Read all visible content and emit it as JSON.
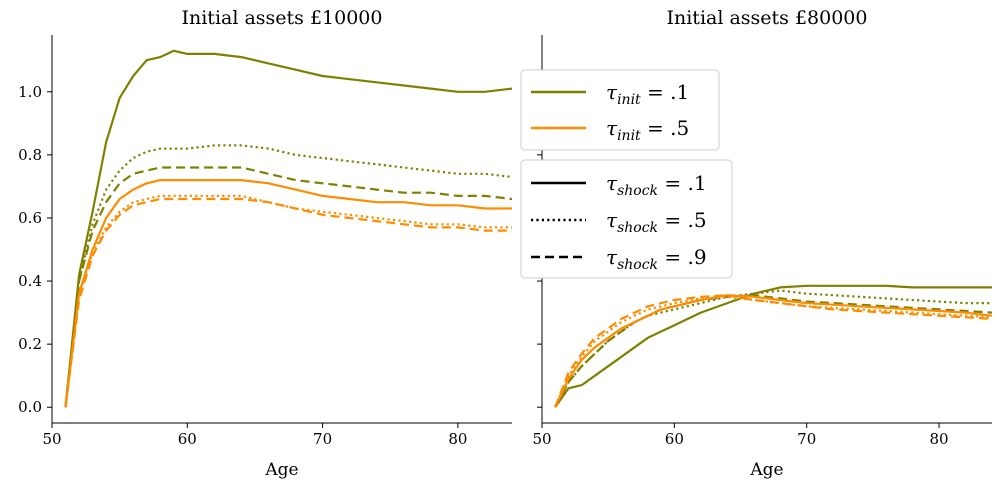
{
  "colors": {
    "olive": "#808000",
    "orange": "#ff8c00"
  },
  "legend_init": [
    {
      "label": "τinit = .1",
      "color_key": "olive"
    },
    {
      "label": "τinit = .5",
      "color_key": "orange"
    }
  ],
  "legend_shock": [
    {
      "label": "τshock = .1",
      "style": "solid"
    },
    {
      "label": "τshock = .5",
      "style": "dotted"
    },
    {
      "label": "τshock = .9",
      "style": "dashed"
    }
  ],
  "chart_data": [
    {
      "type": "line",
      "title": "Initial assets £10000",
      "xlabel": "Age",
      "ylabel": "",
      "xlim": [
        50,
        84
      ],
      "ylim": [
        -0.05,
        1.18
      ],
      "xticks": [
        50,
        60,
        70,
        80
      ],
      "yticks": [
        0.0,
        0.2,
        0.4,
        0.6,
        0.8,
        1.0
      ],
      "ytick_labels": [
        "0.0",
        "0.2",
        "0.4",
        "0.6",
        "0.8",
        "1.0"
      ],
      "x": [
        51,
        52,
        53,
        54,
        55,
        56,
        57,
        58,
        59,
        60,
        62,
        64,
        66,
        68,
        70,
        72,
        74,
        76,
        78,
        80,
        82,
        84
      ],
      "series": [
        {
          "color_key": "olive",
          "dash": "solid",
          "values": [
            0.0,
            0.42,
            0.62,
            0.84,
            0.98,
            1.05,
            1.1,
            1.11,
            1.13,
            1.12,
            1.12,
            1.11,
            1.09,
            1.07,
            1.05,
            1.04,
            1.03,
            1.02,
            1.01,
            1.0,
            1.0,
            1.01
          ]
        },
        {
          "color_key": "olive",
          "dash": "dotted",
          "values": [
            0.0,
            0.4,
            0.58,
            0.69,
            0.75,
            0.79,
            0.81,
            0.82,
            0.82,
            0.82,
            0.83,
            0.83,
            0.82,
            0.8,
            0.79,
            0.78,
            0.77,
            0.76,
            0.75,
            0.74,
            0.74,
            0.73
          ]
        },
        {
          "color_key": "olive",
          "dash": "dashed",
          "values": [
            0.0,
            0.4,
            0.56,
            0.65,
            0.71,
            0.74,
            0.75,
            0.76,
            0.76,
            0.76,
            0.76,
            0.76,
            0.74,
            0.72,
            0.71,
            0.7,
            0.69,
            0.68,
            0.68,
            0.67,
            0.67,
            0.66
          ]
        },
        {
          "color_key": "orange",
          "dash": "solid",
          "values": [
            0.0,
            0.36,
            0.5,
            0.6,
            0.66,
            0.69,
            0.71,
            0.72,
            0.72,
            0.72,
            0.72,
            0.72,
            0.71,
            0.69,
            0.67,
            0.66,
            0.65,
            0.65,
            0.64,
            0.64,
            0.63,
            0.63
          ]
        },
        {
          "color_key": "orange",
          "dash": "dotted",
          "values": [
            0.0,
            0.36,
            0.49,
            0.57,
            0.62,
            0.65,
            0.66,
            0.67,
            0.67,
            0.67,
            0.67,
            0.67,
            0.65,
            0.63,
            0.62,
            0.61,
            0.6,
            0.59,
            0.58,
            0.58,
            0.57,
            0.57
          ]
        },
        {
          "color_key": "orange",
          "dash": "dashed",
          "values": [
            0.0,
            0.34,
            0.48,
            0.56,
            0.61,
            0.64,
            0.65,
            0.66,
            0.66,
            0.66,
            0.66,
            0.66,
            0.65,
            0.63,
            0.61,
            0.6,
            0.59,
            0.58,
            0.57,
            0.57,
            0.56,
            0.56
          ]
        }
      ]
    },
    {
      "type": "line",
      "title": "Initial assets £80000",
      "xlabel": "Age",
      "ylabel": "",
      "xlim": [
        50,
        84
      ],
      "ylim": [
        -0.05,
        1.18
      ],
      "xticks": [
        50,
        60,
        70,
        80
      ],
      "yticks": [
        0.0,
        0.2,
        0.4,
        0.6,
        0.8,
        1.0
      ],
      "ytick_labels": [],
      "x": [
        51,
        52,
        53,
        54,
        55,
        56,
        57,
        58,
        59,
        60,
        62,
        64,
        66,
        68,
        70,
        72,
        74,
        76,
        78,
        80,
        82,
        84
      ],
      "series": [
        {
          "color_key": "olive",
          "dash": "solid",
          "values": [
            0.0,
            0.06,
            0.07,
            0.1,
            0.13,
            0.16,
            0.19,
            0.22,
            0.24,
            0.26,
            0.3,
            0.33,
            0.36,
            0.38,
            0.385,
            0.385,
            0.385,
            0.385,
            0.38,
            0.38,
            0.38,
            0.38
          ]
        },
        {
          "color_key": "olive",
          "dash": "dotted",
          "values": [
            0.0,
            0.08,
            0.13,
            0.17,
            0.21,
            0.24,
            0.27,
            0.29,
            0.3,
            0.31,
            0.33,
            0.35,
            0.36,
            0.37,
            0.36,
            0.355,
            0.35,
            0.345,
            0.34,
            0.335,
            0.33,
            0.33
          ]
        },
        {
          "color_key": "olive",
          "dash": "dashed",
          "values": [
            0.0,
            0.08,
            0.13,
            0.17,
            0.21,
            0.24,
            0.27,
            0.29,
            0.31,
            0.32,
            0.34,
            0.35,
            0.355,
            0.345,
            0.335,
            0.33,
            0.325,
            0.32,
            0.315,
            0.31,
            0.305,
            0.3
          ]
        },
        {
          "color_key": "orange",
          "dash": "solid",
          "values": [
            0.0,
            0.09,
            0.15,
            0.19,
            0.22,
            0.25,
            0.27,
            0.29,
            0.31,
            0.32,
            0.34,
            0.355,
            0.35,
            0.34,
            0.33,
            0.325,
            0.32,
            0.315,
            0.31,
            0.305,
            0.3,
            0.29
          ]
        },
        {
          "color_key": "orange",
          "dash": "dotted",
          "values": [
            0.0,
            0.1,
            0.16,
            0.21,
            0.24,
            0.27,
            0.29,
            0.31,
            0.32,
            0.33,
            0.345,
            0.35,
            0.34,
            0.33,
            0.32,
            0.315,
            0.31,
            0.305,
            0.3,
            0.295,
            0.29,
            0.285
          ]
        },
        {
          "color_key": "orange",
          "dash": "dashed",
          "values": [
            0.0,
            0.11,
            0.17,
            0.22,
            0.25,
            0.28,
            0.3,
            0.32,
            0.33,
            0.34,
            0.35,
            0.355,
            0.34,
            0.33,
            0.32,
            0.31,
            0.305,
            0.3,
            0.295,
            0.29,
            0.285,
            0.28
          ]
        }
      ]
    }
  ]
}
